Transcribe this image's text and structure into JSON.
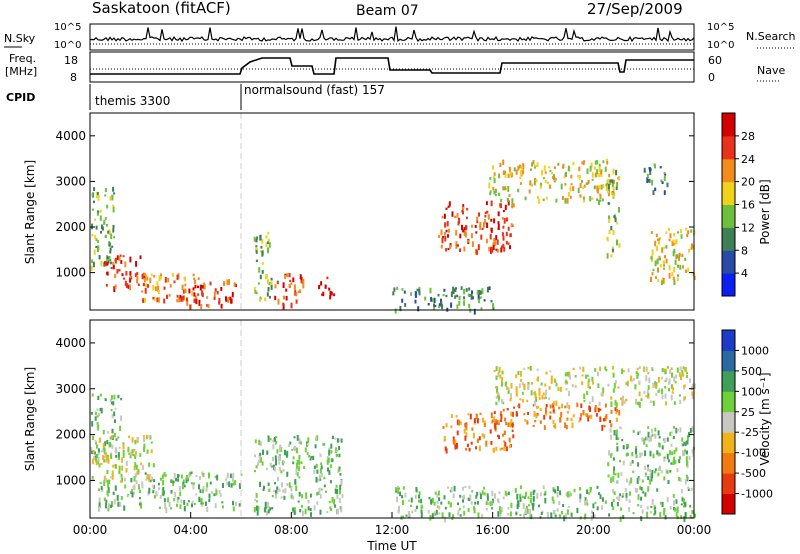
{
  "header": {
    "station": "Saskatoon (fitACF)",
    "beam": "Beam 07",
    "date": "27/Sep/2009"
  },
  "params": {
    "nsky_label": "N.Sky",
    "nsky_ticks": [
      "10^5",
      "10^0"
    ],
    "nsearch_label": "N.Search",
    "nsearch_ticks": [
      "10^5",
      "10^0"
    ],
    "freq_label": [
      "Freq.",
      "[MHz]"
    ],
    "freq_ticks": [
      "18",
      "8"
    ],
    "nave_label": "Nave",
    "nave_ticks": [
      "60",
      "0"
    ],
    "cpid_label": "CPID",
    "cpid_segments": [
      {
        "name": "themis 3300",
        "start_hour": 0
      },
      {
        "name": "normalsound (fast) 157",
        "start_hour": 6.0
      }
    ],
    "colors": {
      "trace": "#000000",
      "divider": "#bbbbbb"
    }
  },
  "chart_data": [
    {
      "type": "heatmap",
      "panel": "power",
      "ylabel": "Slant Range [km]",
      "xlim": [
        0,
        24
      ],
      "ylim": [
        180,
        4500
      ],
      "yticks": [
        1000,
        2000,
        3000,
        4000
      ],
      "colorbar": {
        "label": "Power [dB]",
        "ticks": [
          "28",
          "24",
          "20",
          "16",
          "12",
          "8",
          "4"
        ],
        "colors": [
          "#0a1ff0",
          "#2a4aa8",
          "#3f7f55",
          "#6fbf3f",
          "#f0d21a",
          "#f28c1c",
          "#e8321a",
          "#d40000"
        ]
      },
      "echo_regions": [
        {
          "t0": 0.0,
          "t1": 1.0,
          "r0": 1100,
          "r1": 2900,
          "level": 3
        },
        {
          "t0": 0.5,
          "t1": 2.2,
          "r0": 700,
          "r1": 1400,
          "level": 6
        },
        {
          "t0": 2.0,
          "t1": 4.2,
          "r0": 400,
          "r1": 1000,
          "level": 5
        },
        {
          "t0": 3.5,
          "t1": 5.8,
          "r0": 300,
          "r1": 900,
          "level": 6
        },
        {
          "t0": 6.5,
          "t1": 7.2,
          "r0": 400,
          "r1": 2000,
          "level": 3
        },
        {
          "t0": 7.3,
          "t1": 8.5,
          "r0": 300,
          "r1": 1000,
          "level": 6
        },
        {
          "t0": 9.0,
          "t1": 9.7,
          "r0": 500,
          "r1": 1000,
          "level": 7
        },
        {
          "t0": 12.0,
          "t1": 16.0,
          "r0": 200,
          "r1": 700,
          "level": 2
        },
        {
          "t0": 13.8,
          "t1": 16.8,
          "r0": 1500,
          "r1": 2600,
          "level": 6
        },
        {
          "t0": 15.8,
          "t1": 20.8,
          "r0": 2600,
          "r1": 3500,
          "level": 4
        },
        {
          "t0": 20.5,
          "t1": 21.0,
          "r0": 1400,
          "r1": 3300,
          "level": 3
        },
        {
          "t0": 22.2,
          "t1": 24.0,
          "r0": 800,
          "r1": 2000,
          "level": 4
        },
        {
          "t0": 22.0,
          "t1": 23.0,
          "r0": 2800,
          "r1": 3400,
          "level": 2
        }
      ]
    },
    {
      "type": "heatmap",
      "panel": "velocity",
      "ylabel": "Slant Range [km]",
      "xlabel": "Time UT",
      "xlim": [
        0,
        24
      ],
      "ylim": [
        180,
        4500
      ],
      "yticks": [
        1000,
        2000,
        3000,
        4000
      ],
      "xticks": [
        "00:00",
        "04:00",
        "08:00",
        "12:00",
        "16:00",
        "20:00",
        "00:00"
      ],
      "colorbar": {
        "label": "Velocity [m s⁻¹]",
        "ticks": [
          "1000",
          "500",
          "100",
          "25",
          "-25",
          "-100",
          "-500",
          "-1000"
        ],
        "colors": [
          "#1a3cc8",
          "#2a6aa0",
          "#3f9f5a",
          "#6fd03a",
          "#c8c8c0",
          "#f2b21c",
          "#f27a10",
          "#e83a10",
          "#d40000"
        ]
      },
      "echo_regions": [
        {
          "t0": 0.0,
          "t1": 1.2,
          "r0": 1500,
          "r1": 2900,
          "level": 3
        },
        {
          "t0": 0.3,
          "t1": 6.0,
          "r0": 400,
          "r1": 1200,
          "level": 3
        },
        {
          "t0": 0.0,
          "t1": 2.5,
          "r0": 1000,
          "r1": 2000,
          "level": 4
        },
        {
          "t0": 6.5,
          "t1": 10.0,
          "r0": 300,
          "r1": 2000,
          "level": 3
        },
        {
          "t0": 12.0,
          "t1": 24.0,
          "r0": 200,
          "r1": 900,
          "level": 3
        },
        {
          "t0": 14.0,
          "t1": 16.8,
          "r0": 1700,
          "r1": 2500,
          "level": 6
        },
        {
          "t0": 16.0,
          "t1": 21.0,
          "r0": 2200,
          "r1": 2700,
          "level": 6
        },
        {
          "t0": 16.0,
          "t1": 24.0,
          "r0": 2700,
          "r1": 3500,
          "level": 4
        },
        {
          "t0": 20.5,
          "t1": 24.0,
          "r0": 1000,
          "r1": 2200,
          "level": 3
        }
      ]
    }
  ]
}
